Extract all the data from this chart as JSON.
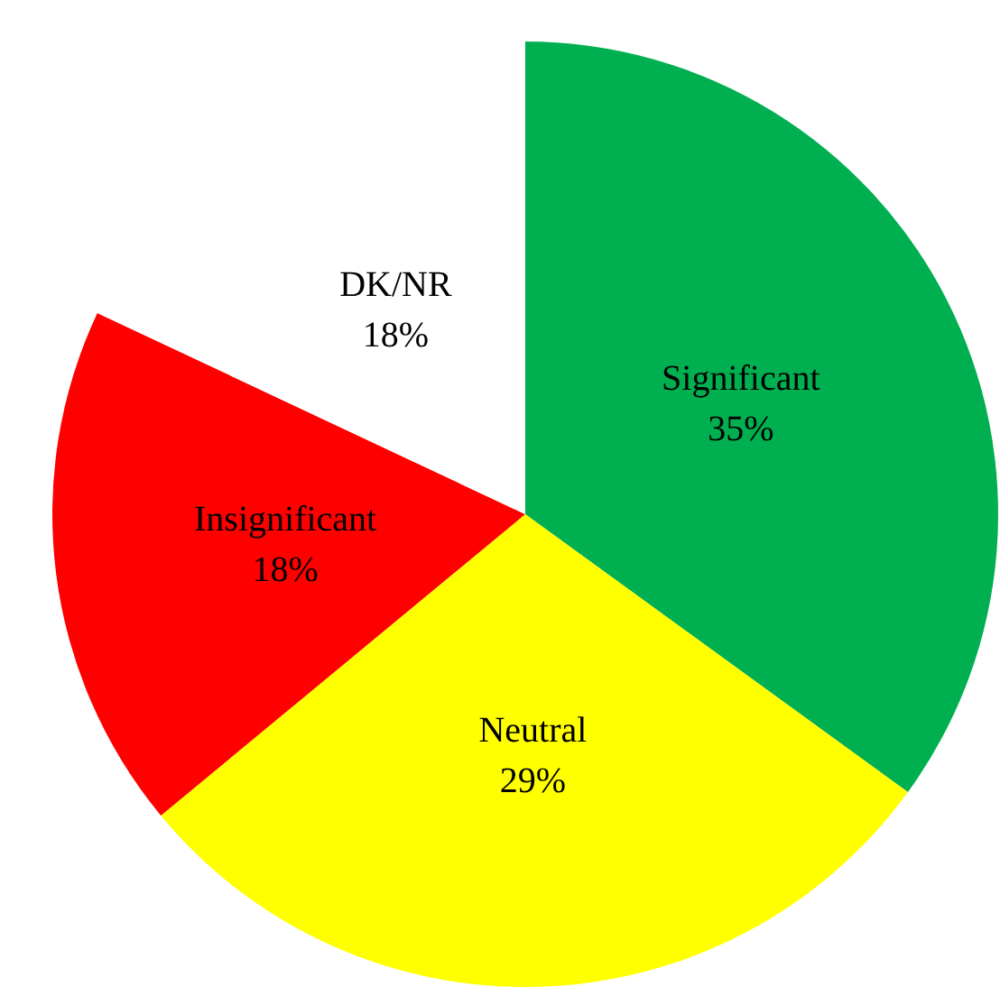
{
  "chart_data": {
    "type": "pie",
    "categories": [
      "Significant",
      "Neutral",
      "Insignificant",
      "DK/NR"
    ],
    "values": [
      35,
      29,
      18,
      18
    ],
    "colors": [
      "#00b050",
      "#ffff00",
      "#ff0000",
      "#ffffff"
    ],
    "value_labels": [
      "35%",
      "29%",
      "18%",
      "18%"
    ]
  }
}
